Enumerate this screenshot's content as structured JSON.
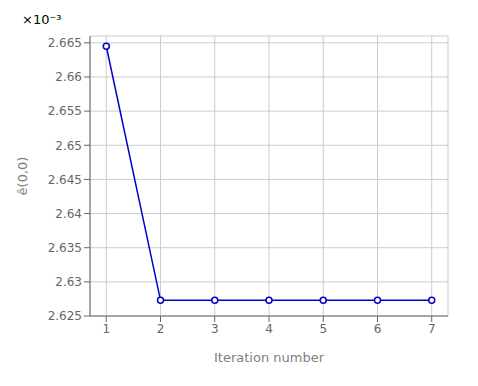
{
  "chart_data": {
    "type": "line",
    "x": [
      1,
      2,
      3,
      4,
      5,
      6,
      7
    ],
    "values": [
      0.0026645,
      0.0026273,
      0.0026273,
      0.0026273,
      0.0026273,
      0.0026273,
      0.0026273
    ],
    "color": "#0000cc",
    "marker": "circle",
    "xlabel": "Iteration number",
    "ylabel": "ê(0,0)",
    "annotation": "×10⁻³",
    "xlim": [
      0.7,
      7.3
    ],
    "ylim": [
      0.002625,
      0.002666
    ],
    "xticks": [
      1,
      2,
      3,
      4,
      5,
      6,
      7
    ],
    "yticks": [
      {
        "value": 0.002625,
        "label": "2.625"
      },
      {
        "value": 0.00263,
        "label": "2.63"
      },
      {
        "value": 0.002635,
        "label": "2.635"
      },
      {
        "value": 0.00264,
        "label": "2.64"
      },
      {
        "value": 0.002645,
        "label": "2.645"
      },
      {
        "value": 0.00265,
        "label": "2.65"
      },
      {
        "value": 0.002655,
        "label": "2.655"
      },
      {
        "value": 0.00266,
        "label": "2.66"
      },
      {
        "value": 0.002665,
        "label": "2.665"
      }
    ],
    "grid": true
  }
}
